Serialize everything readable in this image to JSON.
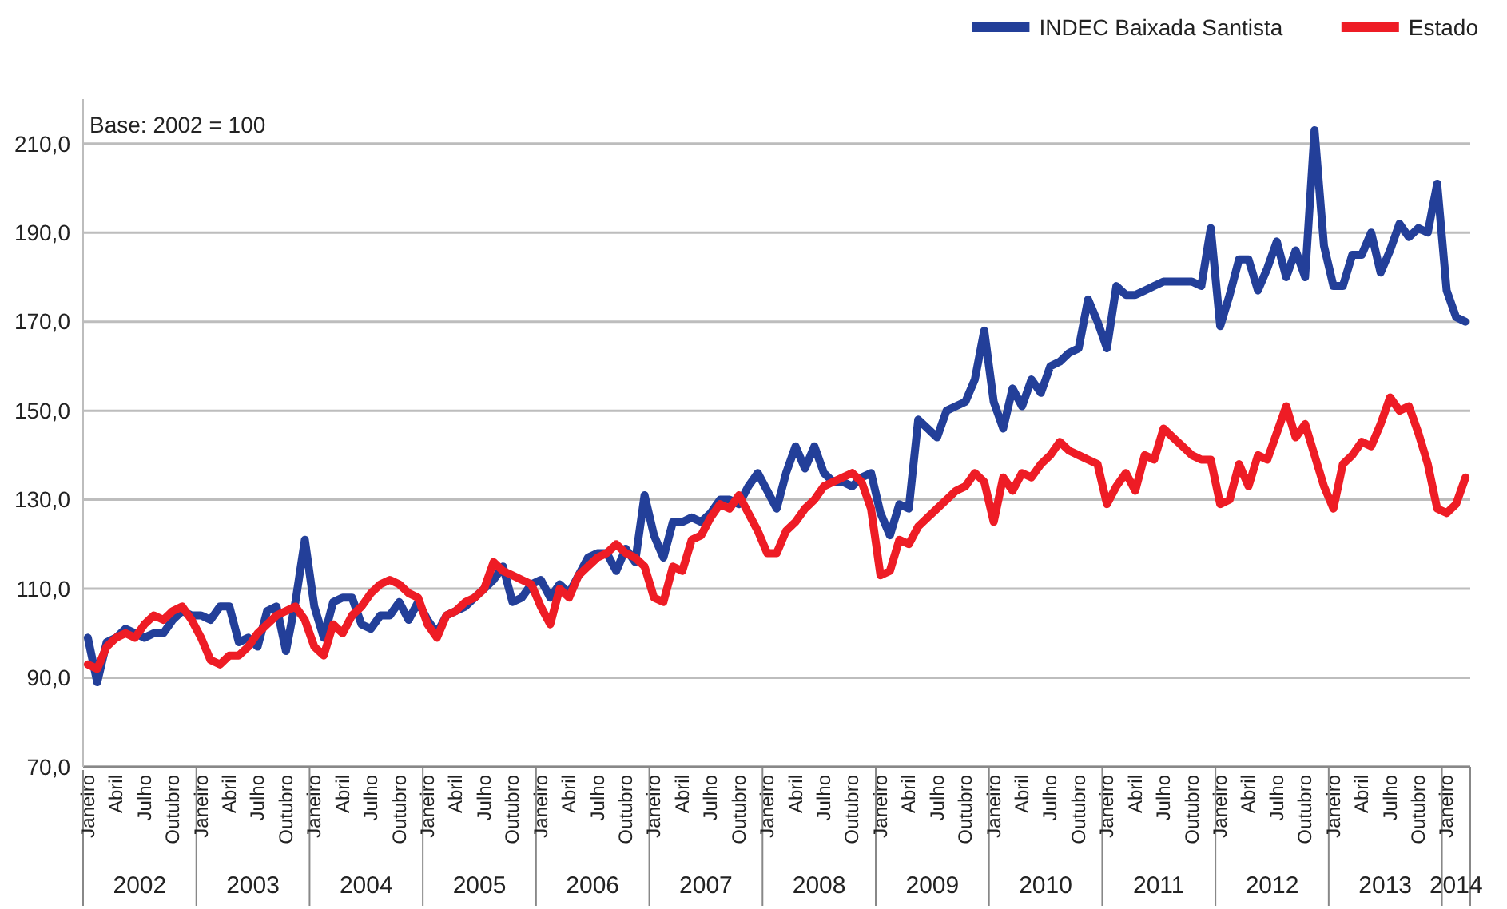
{
  "chart_data": {
    "type": "line",
    "subtitle": "Base: 2002 = 100",
    "categories": [
      "Janeiro",
      null,
      null,
      "Abril",
      null,
      null,
      "Julho",
      null,
      null,
      "Outubro",
      null,
      null,
      "Janeiro",
      null,
      null,
      "Abril",
      null,
      null,
      "Julho",
      null,
      null,
      "Outubro",
      null,
      null,
      "Janeiro",
      null,
      null,
      "Abril",
      null,
      null,
      "Julho",
      null,
      null,
      "Outubro",
      null,
      null,
      "Janeiro",
      null,
      null,
      "Abril",
      null,
      null,
      "Julho",
      null,
      null,
      "Outubro",
      null,
      null,
      "Janeiro",
      null,
      null,
      "Abril",
      null,
      null,
      "Julho",
      null,
      null,
      "Outubro",
      null,
      null,
      "Janeiro",
      null,
      null,
      "Abril",
      null,
      null,
      "Julho",
      null,
      null,
      "Outubro",
      null,
      null,
      "Janeiro",
      null,
      null,
      "Abril",
      null,
      null,
      "Julho",
      null,
      null,
      "Outubro",
      null,
      null,
      "Janeiro",
      null,
      null,
      "Abril",
      null,
      null,
      "Julho",
      null,
      null,
      "Outubro",
      null,
      null,
      "Janeiro",
      null,
      null,
      "Abril",
      null,
      null,
      "Julho",
      null,
      null,
      "Outubro",
      null,
      null,
      "Janeiro",
      null,
      null,
      "Abril",
      null,
      null,
      "Julho",
      null,
      null,
      "Outubro",
      null,
      null,
      "Janeiro",
      null,
      null,
      "Abril",
      null,
      null,
      "Julho",
      null,
      null,
      "Outubro",
      null,
      null,
      "Janeiro",
      null,
      null,
      "Abril",
      null,
      null,
      "Julho",
      null,
      null,
      "Outubro",
      null,
      null,
      "Janeiro",
      null,
      null
    ],
    "annotations": [
      "2002",
      "2003",
      "2004",
      "2005",
      "2006",
      "2007",
      "2008",
      "2009",
      "2010",
      "2011",
      "2012",
      "2013",
      "2014"
    ],
    "series": [
      {
        "name": "INDEC Baixada Santista",
        "color": "#233f99",
        "values": [
          99,
          89,
          98,
          99,
          101,
          100,
          99,
          100,
          100,
          103,
          105,
          104,
          104,
          103,
          106,
          106,
          98,
          99,
          97,
          105,
          106,
          96,
          107,
          121,
          106,
          99,
          107,
          108,
          108,
          102,
          101,
          104,
          104,
          107,
          103,
          107,
          103,
          100,
          104,
          105,
          106,
          108,
          110,
          112,
          115,
          107,
          108,
          111,
          112,
          108,
          111,
          109,
          113,
          117,
          118,
          118,
          114,
          119,
          116,
          131,
          122,
          117,
          125,
          125,
          126,
          125,
          127,
          130,
          130,
          129,
          133,
          136,
          132,
          128,
          136,
          142,
          137,
          142,
          136,
          134,
          134,
          133,
          135,
          136,
          127,
          122,
          129,
          128,
          148,
          146,
          144,
          150,
          151,
          152,
          157,
          168,
          152,
          146,
          155,
          151,
          157,
          154,
          160,
          161,
          163,
          164,
          175,
          170,
          164,
          178,
          176,
          176,
          177,
          178,
          179,
          179,
          179,
          179,
          178,
          191,
          169,
          176,
          184,
          184,
          177,
          182,
          188,
          180,
          186,
          180,
          213,
          187,
          178,
          178,
          185,
          185,
          190,
          181,
          186,
          192,
          189,
          191,
          190,
          201,
          177,
          171,
          170
        ]
      },
      {
        "name": "Estado",
        "color": "#ee1c25",
        "values": [
          93,
          92,
          97,
          99,
          100,
          99,
          102,
          104,
          103,
          105,
          106,
          103,
          99,
          94,
          93,
          95,
          95,
          97,
          100,
          102,
          104,
          105,
          106,
          103,
          97,
          95,
          102,
          100,
          104,
          106,
          109,
          111,
          112,
          111,
          109,
          108,
          102,
          99,
          104,
          105,
          107,
          108,
          110,
          116,
          114,
          113,
          112,
          111,
          106,
          102,
          110,
          108,
          113,
          115,
          117,
          118,
          120,
          118,
          117,
          115,
          108,
          107,
          115,
          114,
          121,
          122,
          126,
          129,
          128,
          131,
          127,
          123,
          118,
          118,
          123,
          125,
          128,
          130,
          133,
          134,
          135,
          136,
          134,
          128,
          113,
          114,
          121,
          120,
          124,
          126,
          128,
          130,
          132,
          133,
          136,
          134,
          125,
          135,
          132,
          136,
          135,
          138,
          140,
          143,
          141,
          140,
          139,
          138,
          129,
          133,
          136,
          132,
          140,
          139,
          146,
          144,
          142,
          140,
          139,
          139,
          129,
          130,
          138,
          133,
          140,
          139,
          145,
          151,
          144,
          147,
          140,
          133,
          128,
          138,
          140,
          143,
          142,
          147,
          153,
          150,
          151,
          145,
          138,
          128,
          127,
          129,
          135
        ]
      }
    ],
    "ylim": [
      70,
      220
    ],
    "yticks": [
      {
        "value": 70,
        "label": "70,0"
      },
      {
        "value": 90,
        "label": "90,0"
      },
      {
        "value": 110,
        "label": "110,0"
      },
      {
        "value": 130,
        "label": "130,0"
      },
      {
        "value": 150,
        "label": "150,0"
      },
      {
        "value": 170,
        "label": "170,0"
      },
      {
        "value": 190,
        "label": "190,0"
      },
      {
        "value": 210,
        "label": "210,0"
      }
    ],
    "grid": "y",
    "legend": "top right",
    "marker": "none",
    "line_style": "solid"
  }
}
